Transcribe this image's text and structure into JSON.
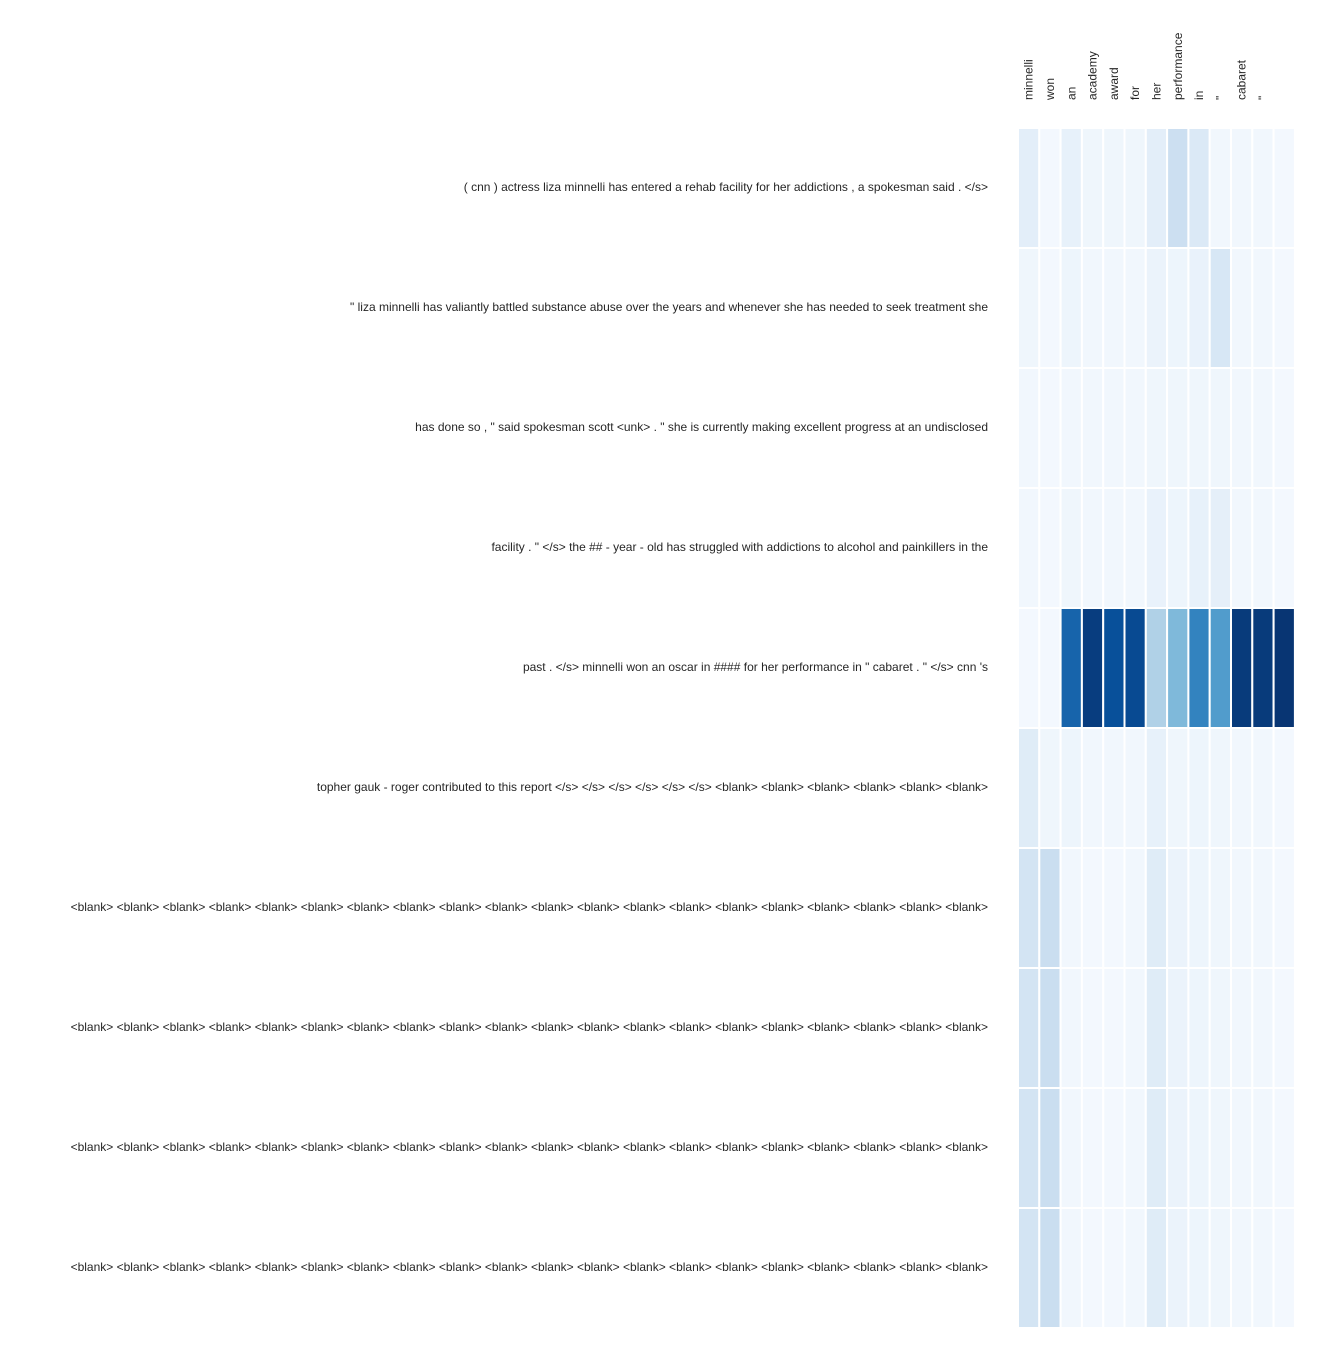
{
  "chart_data": {
    "type": "heatmap",
    "title": "",
    "xlabel": "",
    "ylabel": "",
    "colormap": "Blues",
    "color_range": [
      0,
      1
    ],
    "colors": {
      "low": "#f7fbff",
      "high": "#08306b",
      "cell_border": "#ffffff",
      "text": "#262626"
    },
    "x_labels": [
      "minnelli",
      "won",
      "an",
      "academy",
      "award",
      "for",
      "her",
      "performance",
      "in",
      "\"",
      "cabaret",
      "\"",
      ""
    ],
    "y_labels": [
      "( cnn ) actress liza minnelli has entered a rehab facility for her addictions , a spokesman said . </s>",
      "\" liza minnelli has valiantly battled substance abuse over the years and whenever she has needed to seek treatment she",
      "has done so , \" said spokesman scott <unk> . \" she is currently making excellent progress at an undisclosed",
      "facility . \" </s> the ## - year - old has struggled with addictions to alcohol and painkillers in the",
      "past . </s> minnelli won an oscar in #### for her performance in \" cabaret . \" </s> cnn 's",
      "topher gauk - roger contributed to this report </s> </s> </s> </s> </s> </s> <blank> <blank> <blank> <blank> <blank> <blank>",
      "<blank> <blank> <blank> <blank> <blank> <blank> <blank> <blank> <blank> <blank> <blank> <blank> <blank> <blank> <blank> <blank> <blank> <blank> <blank> <blank>",
      "<blank> <blank> <blank> <blank> <blank> <blank> <blank> <blank> <blank> <blank> <blank> <blank> <blank> <blank> <blank> <blank> <blank> <blank> <blank> <blank>",
      "<blank> <blank> <blank> <blank> <blank> <blank> <blank> <blank> <blank> <blank> <blank> <blank> <blank> <blank> <blank> <blank> <blank> <blank> <blank> <blank>",
      "<blank> <blank> <blank> <blank> <blank> <blank> <blank> <blank> <blank> <blank> <blank> <blank> <blank> <blank> <blank> <blank> <blank> <blank> <blank> <blank>"
    ],
    "values": [
      [
        0.1,
        0.02,
        0.08,
        0.04,
        0.04,
        0.04,
        0.1,
        0.22,
        0.14,
        0.03,
        0.03,
        0.03,
        0.02
      ],
      [
        0.04,
        0.02,
        0.05,
        0.03,
        0.03,
        0.03,
        0.06,
        0.05,
        0.07,
        0.16,
        0.03,
        0.03,
        0.02
      ],
      [
        0.03,
        0.02,
        0.03,
        0.03,
        0.03,
        0.03,
        0.04,
        0.04,
        0.04,
        0.04,
        0.03,
        0.03,
        0.02
      ],
      [
        0.03,
        0.02,
        0.04,
        0.03,
        0.03,
        0.03,
        0.07,
        0.05,
        0.08,
        0.09,
        0.03,
        0.03,
        0.02
      ],
      [
        0.02,
        0.02,
        0.8,
        0.95,
        0.88,
        0.9,
        0.32,
        0.45,
        0.68,
        0.58,
        0.96,
        0.96,
        0.98
      ],
      [
        0.12,
        0.04,
        0.05,
        0.03,
        0.03,
        0.03,
        0.08,
        0.04,
        0.05,
        0.04,
        0.03,
        0.03,
        0.02
      ],
      [
        0.18,
        0.23,
        0.03,
        0.02,
        0.02,
        0.03,
        0.12,
        0.06,
        0.05,
        0.04,
        0.03,
        0.03,
        0.02
      ],
      [
        0.18,
        0.23,
        0.03,
        0.02,
        0.02,
        0.03,
        0.12,
        0.06,
        0.05,
        0.04,
        0.03,
        0.03,
        0.02
      ],
      [
        0.18,
        0.23,
        0.03,
        0.02,
        0.02,
        0.03,
        0.12,
        0.06,
        0.05,
        0.04,
        0.03,
        0.03,
        0.02
      ],
      [
        0.18,
        0.23,
        0.03,
        0.02,
        0.02,
        0.03,
        0.12,
        0.06,
        0.05,
        0.04,
        0.03,
        0.03,
        0.02
      ]
    ],
    "grid": false,
    "legend": "none"
  }
}
